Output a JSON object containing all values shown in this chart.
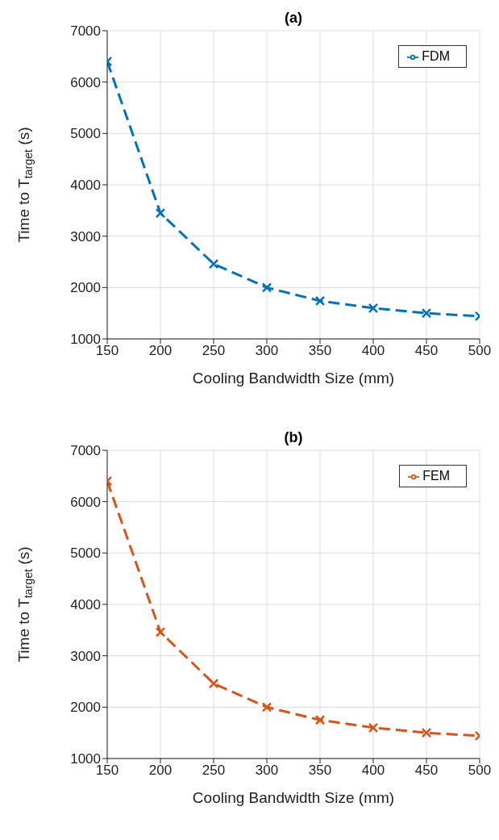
{
  "chart_data": [
    {
      "type": "line",
      "title": "(a)",
      "xlabel": "Cooling Bandwidth Size (mm)",
      "ylabel": "Time to T$_{target}$ (s)",
      "x": [
        150,
        200,
        250,
        300,
        350,
        400,
        450,
        500
      ],
      "series": [
        {
          "name": "FDM",
          "color": "#0072bd",
          "values": [
            6400,
            3450,
            2460,
            2000,
            1740,
            1600,
            1500,
            1440
          ]
        }
      ],
      "xlim": [
        150,
        500
      ],
      "xticks": [
        150,
        200,
        250,
        300,
        350,
        400,
        450,
        500
      ],
      "ylim": [
        1000,
        7000
      ],
      "yticks": [
        1000,
        2000,
        3000,
        4000,
        5000,
        6000,
        7000
      ],
      "grid": true,
      "legend": "top right",
      "marker": "cross",
      "line_style": "dashed"
    },
    {
      "type": "line",
      "title": "(b)",
      "xlabel": "Cooling Bandwidth Size (mm)",
      "ylabel": "Time to T$_{target}$ (s)",
      "x": [
        150,
        200,
        250,
        300,
        350,
        400,
        450,
        500
      ],
      "series": [
        {
          "name": "FEM",
          "color": "#d95319",
          "values": [
            6400,
            3460,
            2460,
            2000,
            1750,
            1600,
            1500,
            1440
          ]
        }
      ],
      "xlim": [
        150,
        500
      ],
      "xticks": [
        150,
        200,
        250,
        300,
        350,
        400,
        450,
        500
      ],
      "ylim": [
        1000,
        7000
      ],
      "yticks": [
        1000,
        2000,
        3000,
        4000,
        5000,
        6000,
        7000
      ],
      "grid": true,
      "legend": "top right",
      "marker": "cross",
      "line_style": "dashed"
    }
  ]
}
